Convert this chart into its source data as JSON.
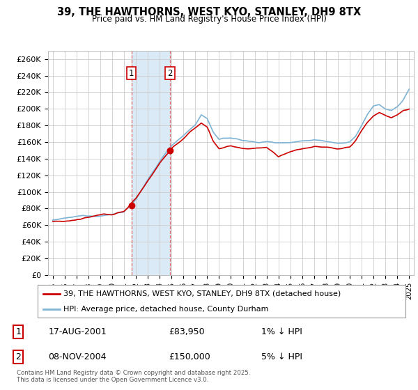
{
  "title1": "39, THE HAWTHORNS, WEST KYO, STANLEY, DH9 8TX",
  "title2": "Price paid vs. HM Land Registry's House Price Index (HPI)",
  "ylabel_ticks": [
    "£0",
    "£20K",
    "£40K",
    "£60K",
    "£80K",
    "£100K",
    "£120K",
    "£140K",
    "£160K",
    "£180K",
    "£200K",
    "£220K",
    "£240K",
    "£260K"
  ],
  "ytick_values": [
    0,
    20000,
    40000,
    60000,
    80000,
    100000,
    120000,
    140000,
    160000,
    180000,
    200000,
    220000,
    240000,
    260000
  ],
  "ylim": [
    0,
    270000
  ],
  "background_color": "#ffffff",
  "grid_color": "#cccccc",
  "hpi_color": "#7fb3d3",
  "price_color": "#cc0000",
  "highlight_color": "#daeaf7",
  "vline_color": "#dd6666",
  "legend1": "39, THE HAWTHORNS, WEST KYO, STANLEY, DH9 8TX (detached house)",
  "legend2": "HPI: Average price, detached house, County Durham",
  "annotation1_date": "17-AUG-2001",
  "annotation1_price": "£83,950",
  "annotation1_hpi": "1% ↓ HPI",
  "annotation2_date": "08-NOV-2004",
  "annotation2_price": "£150,000",
  "annotation2_hpi": "5% ↓ HPI",
  "sale1_year": 2001.625,
  "sale1_price": 83950,
  "sale2_year": 2004.875,
  "sale2_price": 150000,
  "footer": "Contains HM Land Registry data © Crown copyright and database right 2025.\nThis data is licensed under the Open Government Licence v3.0."
}
